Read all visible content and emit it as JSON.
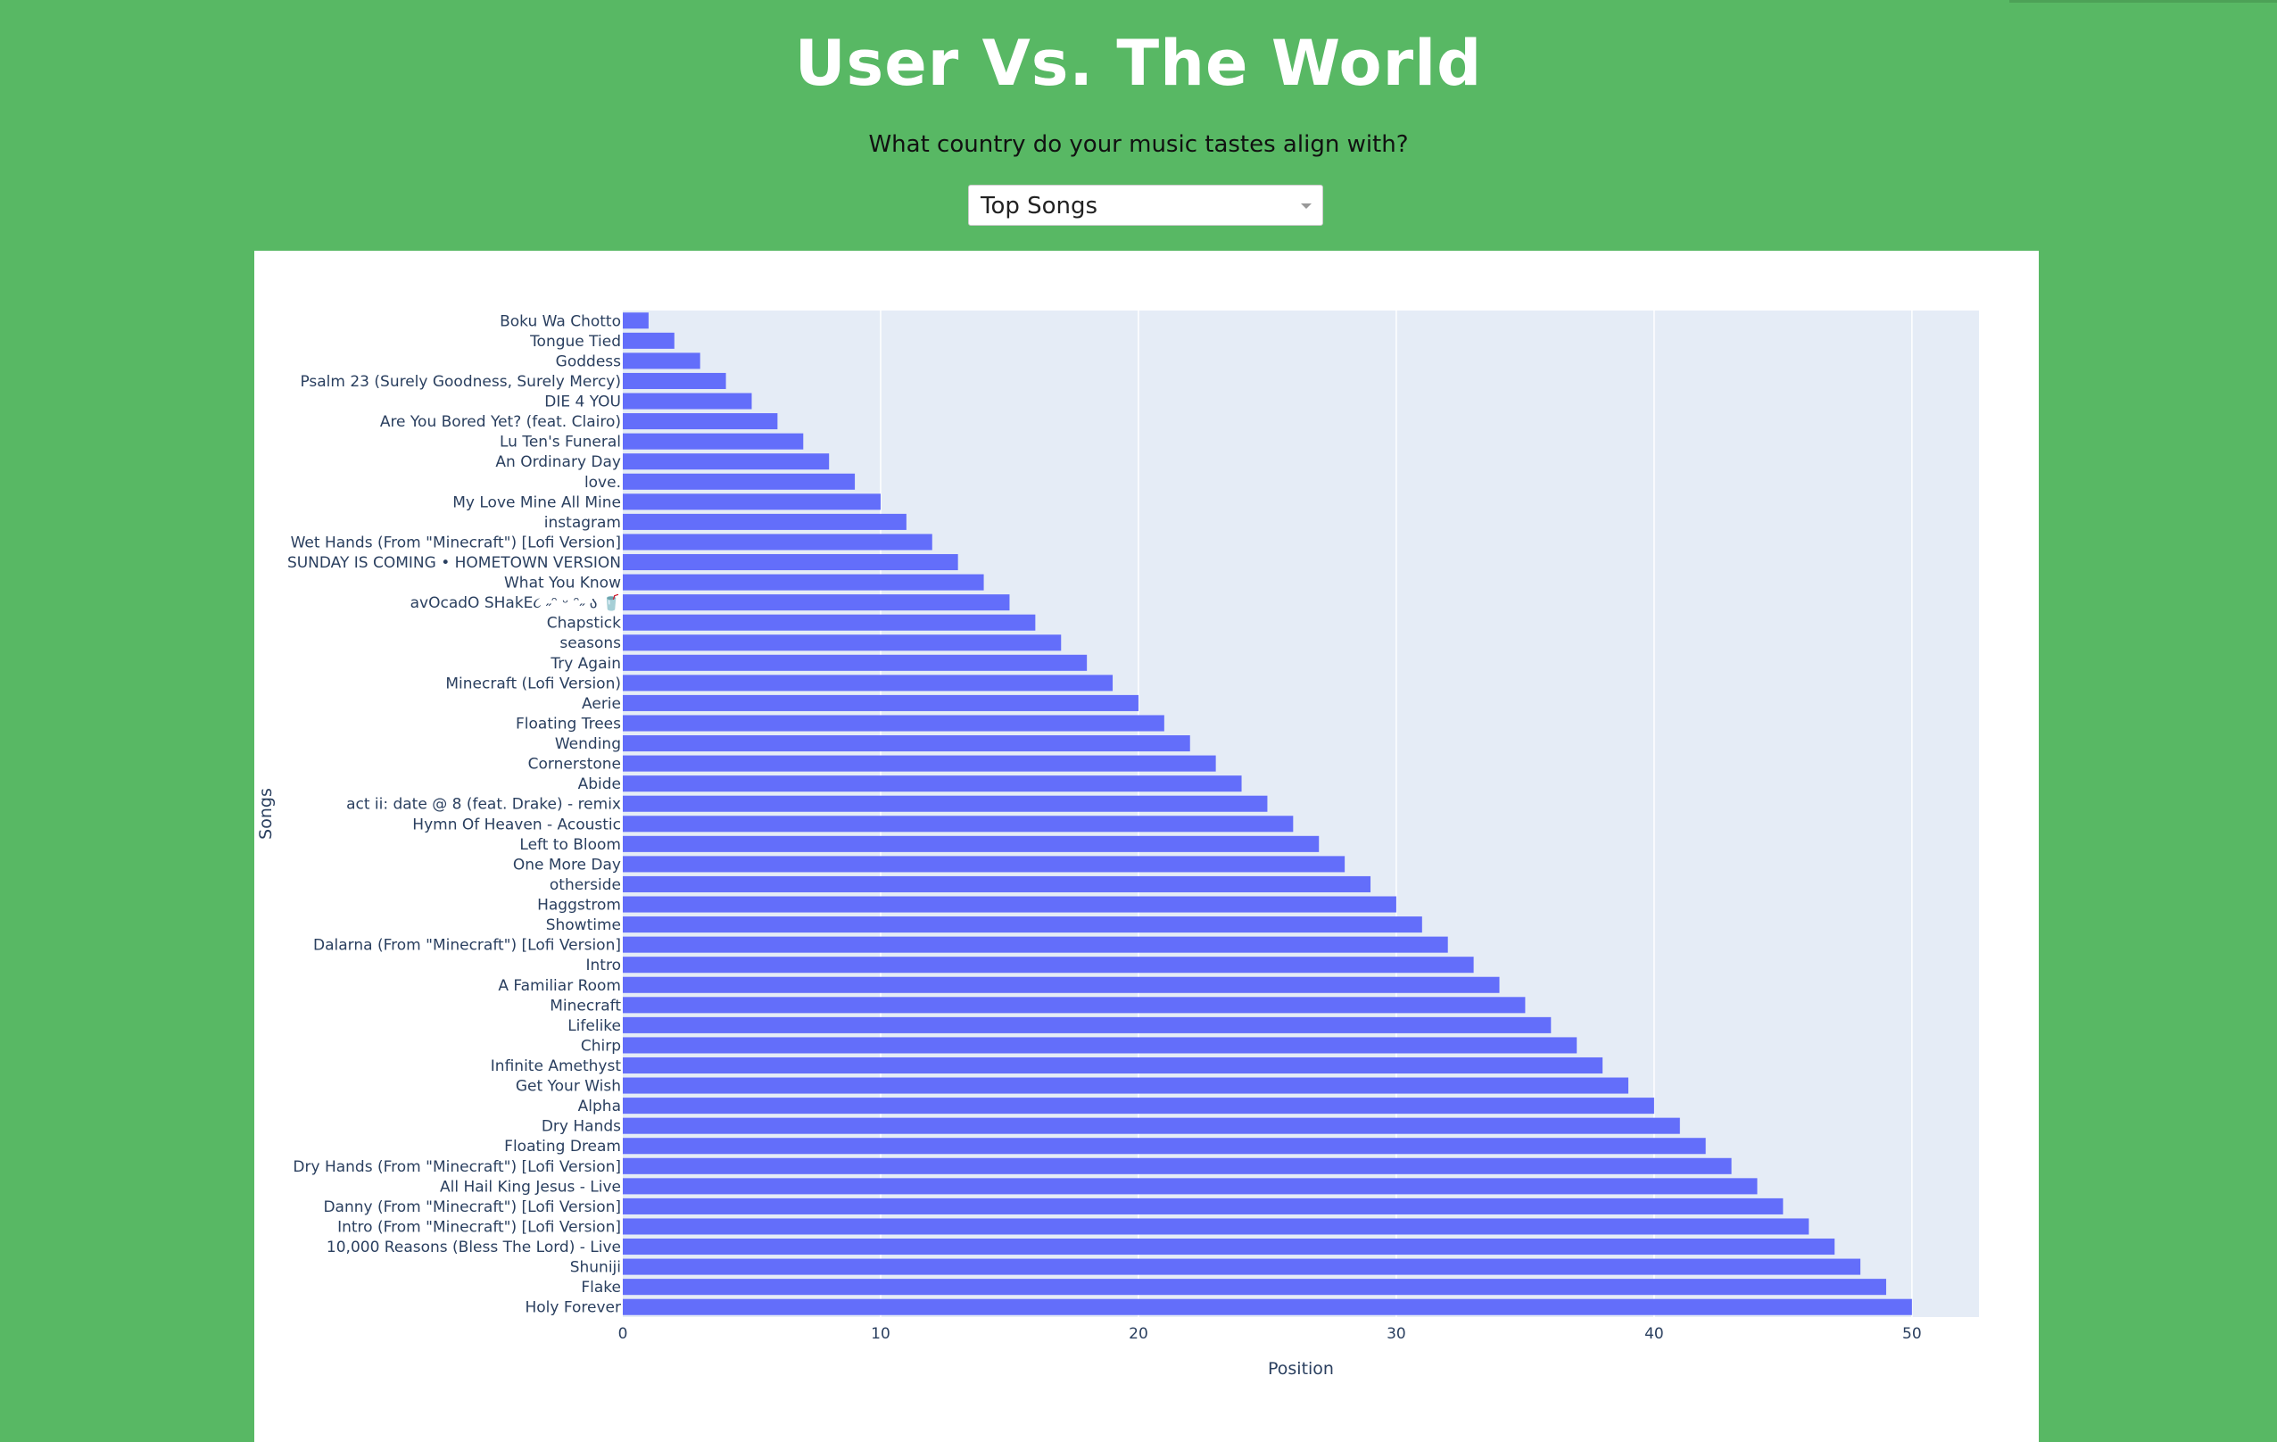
{
  "header": {
    "title": "User Vs. The World",
    "subtitle": "What country do your music tastes align with?"
  },
  "selector": {
    "value": "Top Songs",
    "icon": "chevron-down-icon"
  },
  "colors": {
    "page_background": "#58b864",
    "bar": "#636efa",
    "plot_background": "#e5ecf6",
    "text": "#2a3f5f"
  },
  "chart_data": {
    "type": "bar",
    "orientation": "horizontal",
    "xlabel": "Position",
    "ylabel": "Songs",
    "xlim": [
      0,
      52.6
    ],
    "xticks": [
      0,
      10,
      20,
      30,
      40,
      50
    ],
    "grid": true,
    "categories": [
      "Boku Wa Chotto",
      "Tongue Tied",
      "Goddess",
      "Psalm 23 (Surely Goodness, Surely Mercy)",
      "DIE 4 YOU",
      "Are You Bored Yet? (feat. Clairo)",
      "Lu Ten's Funeral",
      "An Ordinary Day",
      "love.",
      "My Love Mine All Mine",
      "instagram",
      "Wet Hands (From \"Minecraft\") [Lofi Version]",
      "SUNDAY IS COMING • HOMETOWN VERSION",
      "What You Know",
      "avOcadO SHakE૮ ˶ᵔ ᵕ ᵔ˶ ა 🥤",
      "Chapstick",
      "seasons",
      "Try Again",
      "Minecraft (Lofi Version)",
      "Aerie",
      "Floating Trees",
      "Wending",
      "Cornerstone",
      "Abide",
      "act ii: date @ 8 (feat. Drake) - remix",
      "Hymn Of Heaven - Acoustic",
      "Left to Bloom",
      "One More Day",
      "otherside",
      "Haggstrom",
      "Showtime",
      "Dalarna (From \"Minecraft\") [Lofi Version]",
      "Intro",
      "A Familiar Room",
      "Minecraft",
      "Lifelike",
      "Chirp",
      "Infinite Amethyst",
      "Get Your Wish",
      "Alpha",
      "Dry Hands",
      "Floating Dream",
      "Dry Hands (From \"Minecraft\") [Lofi Version]",
      "All Hail King Jesus - Live",
      "Danny (From \"Minecraft\") [Lofi Version]",
      "Intro (From \"Minecraft\") [Lofi Version]",
      "10,000 Reasons (Bless The Lord) - Live",
      "Shuniji",
      "Flake",
      "Holy Forever"
    ],
    "values": [
      1,
      2,
      3,
      4,
      5,
      6,
      7,
      8,
      9,
      10,
      11,
      12,
      13,
      14,
      15,
      16,
      17,
      18,
      19,
      20,
      21,
      22,
      23,
      24,
      25,
      26,
      27,
      28,
      29,
      30,
      31,
      32,
      33,
      34,
      35,
      36,
      37,
      38,
      39,
      40,
      41,
      42,
      43,
      44,
      45,
      46,
      47,
      48,
      49,
      50
    ]
  }
}
